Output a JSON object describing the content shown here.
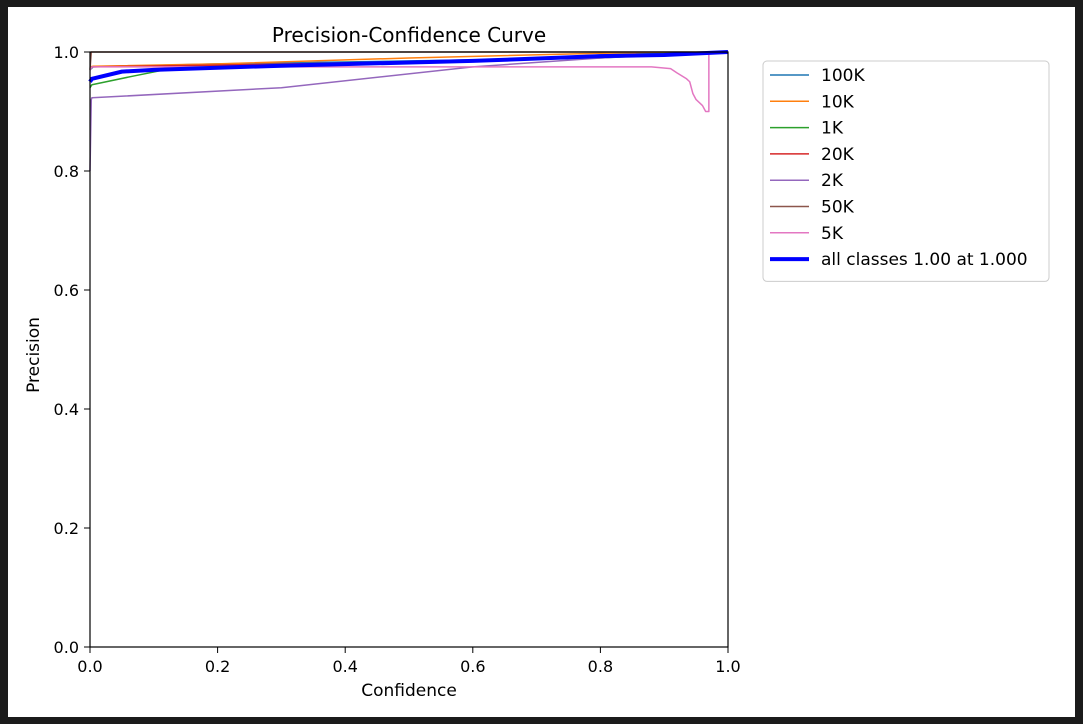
{
  "chart_data": {
    "type": "line",
    "title": "Precision-Confidence Curve",
    "xlabel": "Confidence",
    "ylabel": "Precision",
    "xlim": [
      0,
      1
    ],
    "ylim": [
      0,
      1
    ],
    "xticks": [
      "0.0",
      "0.2",
      "0.4",
      "0.6",
      "0.8",
      "1.0"
    ],
    "yticks": [
      "0.0",
      "0.2",
      "0.4",
      "0.6",
      "0.8",
      "1.0"
    ],
    "grid": false,
    "legend_position": "outside-upper-right",
    "series": [
      {
        "name": "100K",
        "color": "#1f77b4",
        "width": 1.5,
        "x": [
          0.0,
          0.005,
          0.2,
          0.5,
          0.8,
          0.9,
          1.0
        ],
        "y": [
          0.97,
          0.975,
          0.98,
          0.985,
          0.99,
          0.995,
          1.0
        ]
      },
      {
        "name": "10K",
        "color": "#ff7f0e",
        "width": 1.5,
        "x": [
          0.0,
          0.005,
          0.2,
          0.5,
          0.8,
          1.0
        ],
        "y": [
          0.975,
          0.976,
          0.98,
          0.99,
          0.998,
          1.0
        ]
      },
      {
        "name": "1K",
        "color": "#2ca02c",
        "width": 1.5,
        "x": [
          0.0,
          0.003,
          0.07,
          0.14,
          0.3,
          0.6,
          0.8,
          1.0
        ],
        "y": [
          0.94,
          0.945,
          0.96,
          0.975,
          0.978,
          0.985,
          0.995,
          1.0
        ]
      },
      {
        "name": "20K",
        "color": "#d62728",
        "width": 1.5,
        "x": [
          0.0,
          0.003,
          0.2,
          0.6,
          0.9,
          1.0
        ],
        "y": [
          0.97,
          0.975,
          0.978,
          0.985,
          0.995,
          1.0
        ]
      },
      {
        "name": "2K",
        "color": "#9467bd",
        "width": 1.5,
        "x": [
          0.0,
          0.002,
          0.003,
          0.3,
          0.6,
          0.8,
          0.93,
          1.0
        ],
        "y": [
          0.8,
          0.92,
          0.923,
          0.94,
          0.975,
          0.99,
          0.998,
          1.0
        ]
      },
      {
        "name": "50K",
        "color": "#8c564b",
        "width": 1.5,
        "x": [
          0.0,
          0.002,
          1.0
        ],
        "y": [
          0.97,
          1.0,
          1.0
        ]
      },
      {
        "name": "5K",
        "color": "#e377c2",
        "width": 1.5,
        "x": [
          0.0,
          0.003,
          0.3,
          0.6,
          0.88,
          0.91,
          0.92,
          0.935,
          0.94,
          0.945,
          0.95,
          0.96,
          0.965,
          0.97,
          0.97,
          1.0
        ],
        "y": [
          0.97,
          0.975,
          0.975,
          0.975,
          0.975,
          0.972,
          0.965,
          0.955,
          0.95,
          0.93,
          0.92,
          0.91,
          0.9,
          0.9,
          1.0,
          1.0
        ]
      },
      {
        "name": "all classes 1.00 at 1.000",
        "color": "#0000ff",
        "width": 4,
        "x": [
          0.0,
          0.003,
          0.05,
          0.1,
          0.3,
          0.6,
          0.8,
          0.9,
          1.0
        ],
        "y": [
          0.95,
          0.955,
          0.967,
          0.97,
          0.977,
          0.985,
          0.993,
          0.995,
          1.0
        ]
      }
    ]
  }
}
